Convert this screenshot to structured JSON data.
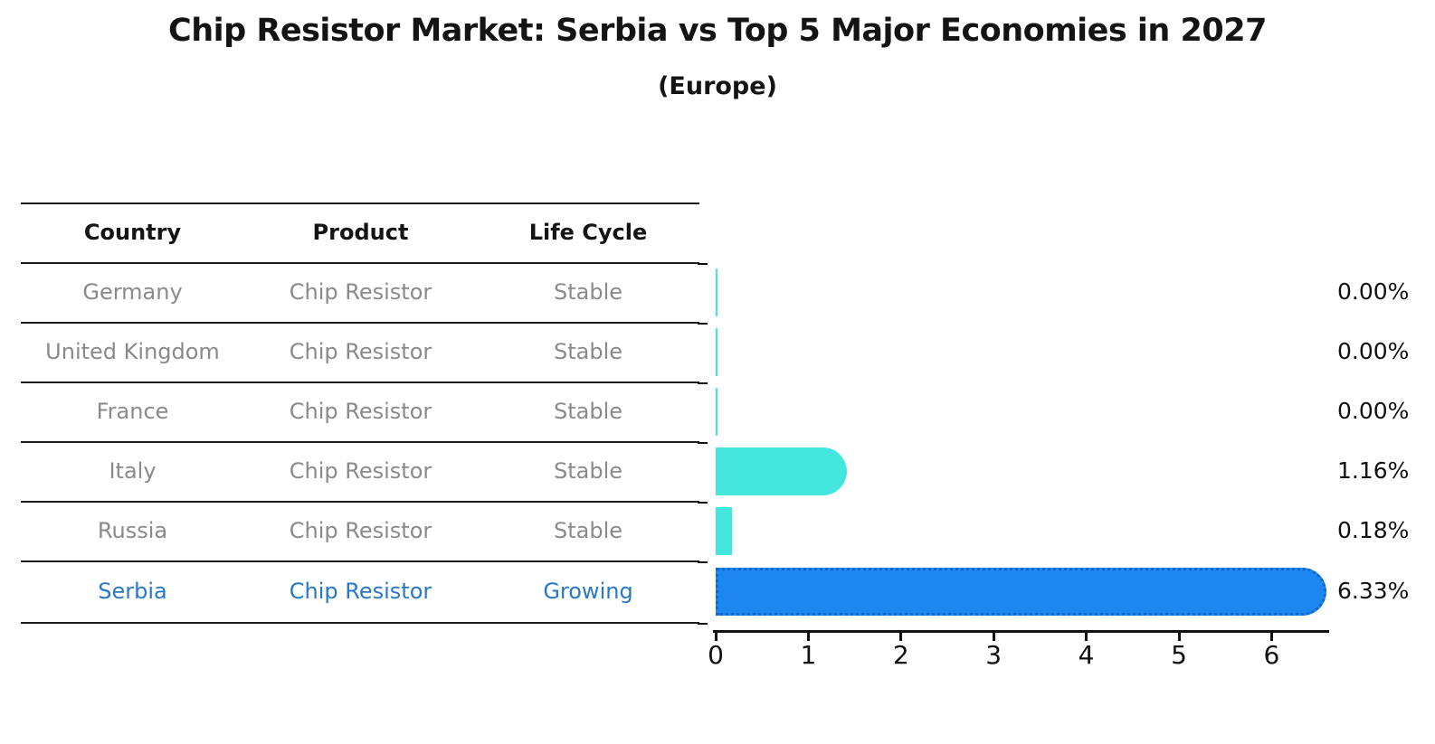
{
  "chart_data": {
    "type": "bar",
    "orientation": "horizontal",
    "title": "Chip Resistor Market: Serbia vs Top 5 Major Economies in 2027",
    "subtitle": "(Europe)",
    "categories": [
      "Germany",
      "United Kingdom",
      "France",
      "Italy",
      "Russia",
      "Serbia"
    ],
    "values": [
      0.0,
      0.0,
      0.0,
      1.16,
      0.18,
      6.33
    ],
    "value_labels": [
      "0.00%",
      "0.00%",
      "0.00%",
      "1.16%",
      "0.18%",
      "6.33%"
    ],
    "unit": "percent",
    "x_ticks": [
      0,
      1,
      2,
      3,
      4,
      5,
      6
    ],
    "xlim": [
      0,
      6.65
    ],
    "grid": false,
    "legend": false,
    "highlight_index": 5
  },
  "table": {
    "headers": [
      "Country",
      "Product",
      "Life Cycle"
    ],
    "rows": [
      {
        "country": "Germany",
        "product": "Chip Resistor",
        "life_cycle": "Stable",
        "highlight": false
      },
      {
        "country": "United Kingdom",
        "product": "Chip Resistor",
        "life_cycle": "Stable",
        "highlight": false
      },
      {
        "country": "France",
        "product": "Chip Resistor",
        "life_cycle": "Stable",
        "highlight": false
      },
      {
        "country": "Italy",
        "product": "Chip Resistor",
        "life_cycle": "Stable",
        "highlight": false
      },
      {
        "country": "Russia",
        "product": "Chip Resistor",
        "life_cycle": "Stable",
        "highlight": false
      },
      {
        "country": "Serbia",
        "product": "Chip Resistor",
        "life_cycle": "Growing",
        "highlight": true
      }
    ]
  },
  "colors": {
    "bar_default": "#43e6dd",
    "bar_highlight": "#1e86f0",
    "bar_highlight_edge": "rgba(10,80,175,0.6)",
    "highlight_text": "#2878c8",
    "table_text": "#8a8a8a",
    "heading_text": "#141414",
    "axis": "#111111"
  }
}
